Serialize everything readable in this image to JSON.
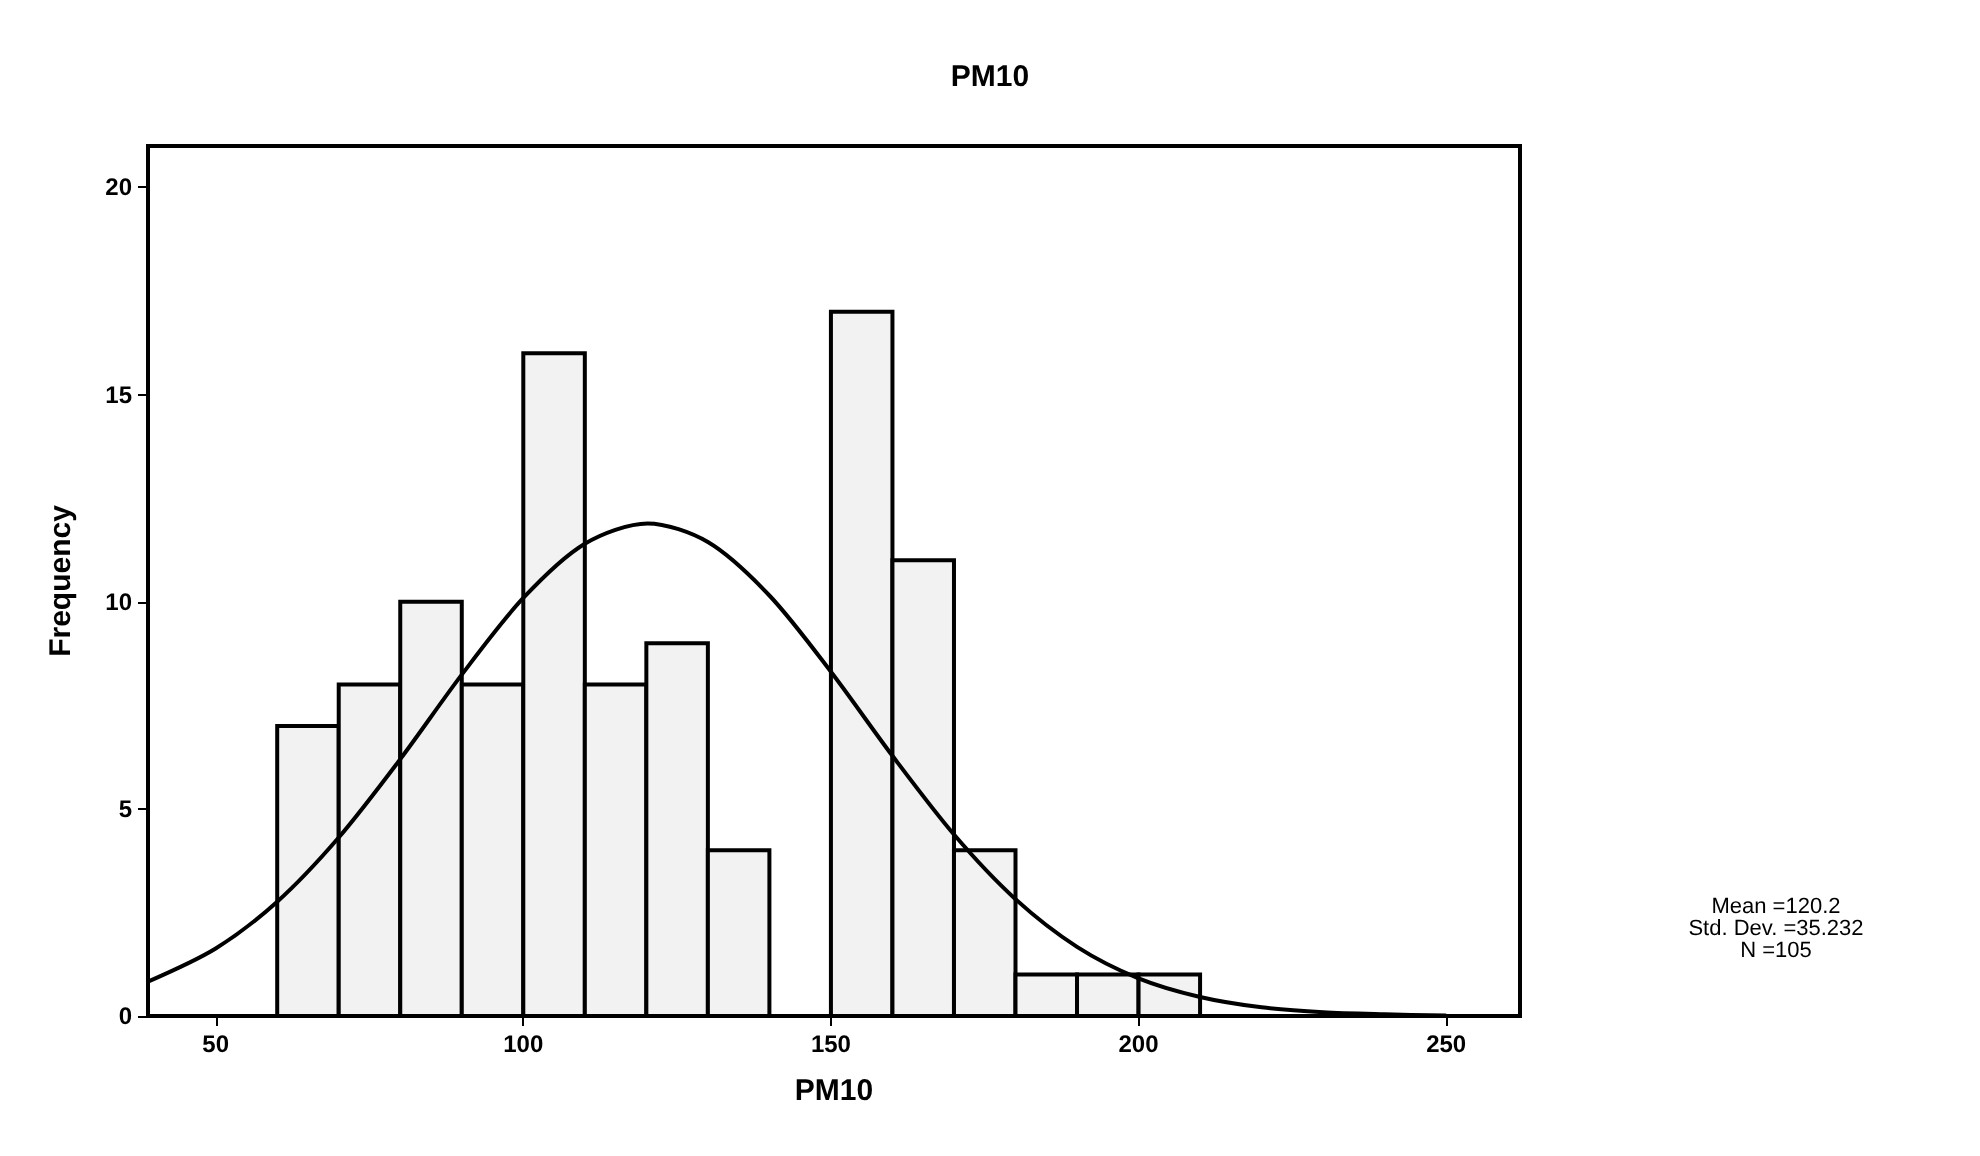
{
  "chart_data": {
    "type": "histogram",
    "title": "PM10",
    "xlabel": "PM10",
    "ylabel": "Frequency",
    "series": [
      {
        "color": "#f2f2f2",
        "bins": [
          60,
          70,
          80,
          90,
          100,
          110,
          120,
          130,
          140,
          150,
          160,
          170,
          180,
          190,
          200,
          210
        ],
        "values": [
          7,
          8,
          10,
          8,
          16,
          8,
          9,
          4,
          0,
          17,
          11,
          4,
          1,
          1,
          1
        ]
      },
      {
        "type": "line",
        "color": "#000000",
        "x": [
          39,
          50,
          60,
          70,
          80,
          90,
          100,
          110,
          120.2,
          130,
          140,
          150,
          160,
          170,
          180,
          190,
          200,
          210,
          220,
          230,
          240,
          250
        ],
        "values": [
          0.83,
          1.63,
          2.76,
          4.31,
          6.2,
          8.24,
          10.09,
          11.4,
          11.89,
          11.44,
          10.15,
          8.31,
          6.28,
          4.38,
          2.82,
          1.67,
          0.91,
          0.46,
          0.21,
          0.09,
          0.04,
          0.01
        ]
      }
    ],
    "xlim": [
      39,
      262
    ],
    "xticks": [
      50,
      100,
      150,
      200,
      250
    ],
    "ylim": [
      0,
      21
    ],
    "yticks": [
      0,
      5,
      10,
      15,
      20
    ],
    "grid": false,
    "marker": "none",
    "line_style": "solid",
    "annotations": [
      "Mean =120.2",
      "Std. Dev. =35.232",
      "N =105"
    ]
  }
}
